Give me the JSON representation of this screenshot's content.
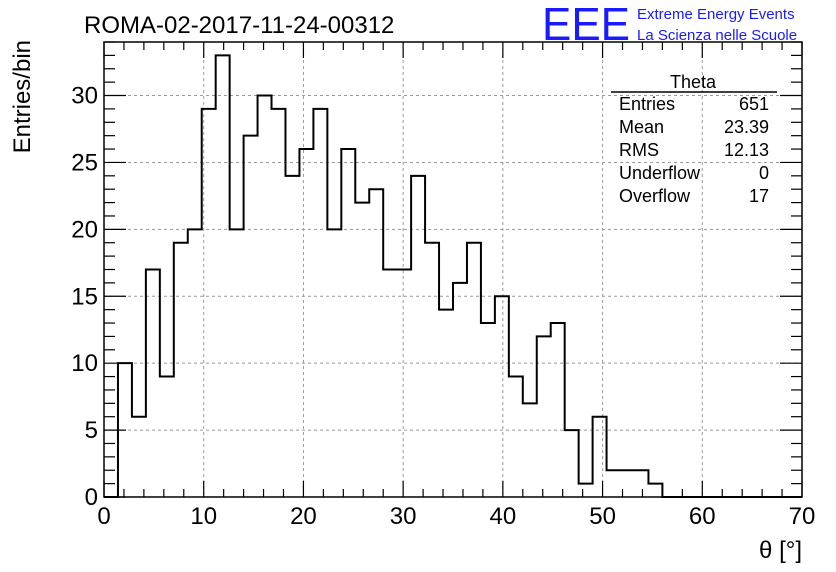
{
  "chart_data": {
    "type": "histogram",
    "title": "ROMA-02-2017-11-24-00312",
    "xlabel": "θ [°]",
    "ylabel": "Entries/bin",
    "xlim": [
      0,
      70
    ],
    "ylim": [
      0,
      34
    ],
    "grid": true,
    "bin_width": 1.4,
    "x_ticks": [
      0,
      10,
      20,
      30,
      40,
      50,
      60,
      70
    ],
    "y_ticks": [
      0,
      5,
      10,
      15,
      20,
      25,
      30
    ],
    "values": [
      0,
      10,
      6,
      17,
      9,
      19,
      20,
      29,
      33,
      20,
      27,
      30,
      29,
      24,
      26,
      29,
      20,
      26,
      22,
      23,
      17,
      17,
      24,
      19,
      14,
      16,
      19,
      13,
      15,
      9,
      7,
      12,
      13,
      5,
      1,
      6,
      2,
      2,
      2,
      1,
      0,
      0,
      0,
      0,
      0,
      0,
      0,
      0,
      0,
      0
    ]
  },
  "stats_box": {
    "name": "Theta",
    "rows": [
      {
        "label": "Entries",
        "value": "651"
      },
      {
        "label": "Mean",
        "value": "23.39"
      },
      {
        "label": "RMS",
        "value": "12.13"
      },
      {
        "label": "Underflow",
        "value": "0"
      },
      {
        "label": "Overflow",
        "value": "17"
      }
    ]
  },
  "logo": {
    "mark": "EEE",
    "line1": "Extreme Energy Events",
    "line2": "La Scienza nelle Scuole",
    "color": "#1a1aff"
  },
  "colors": {
    "line": "#000000",
    "grid": "#9a9a9a",
    "background": "#ffffff"
  }
}
